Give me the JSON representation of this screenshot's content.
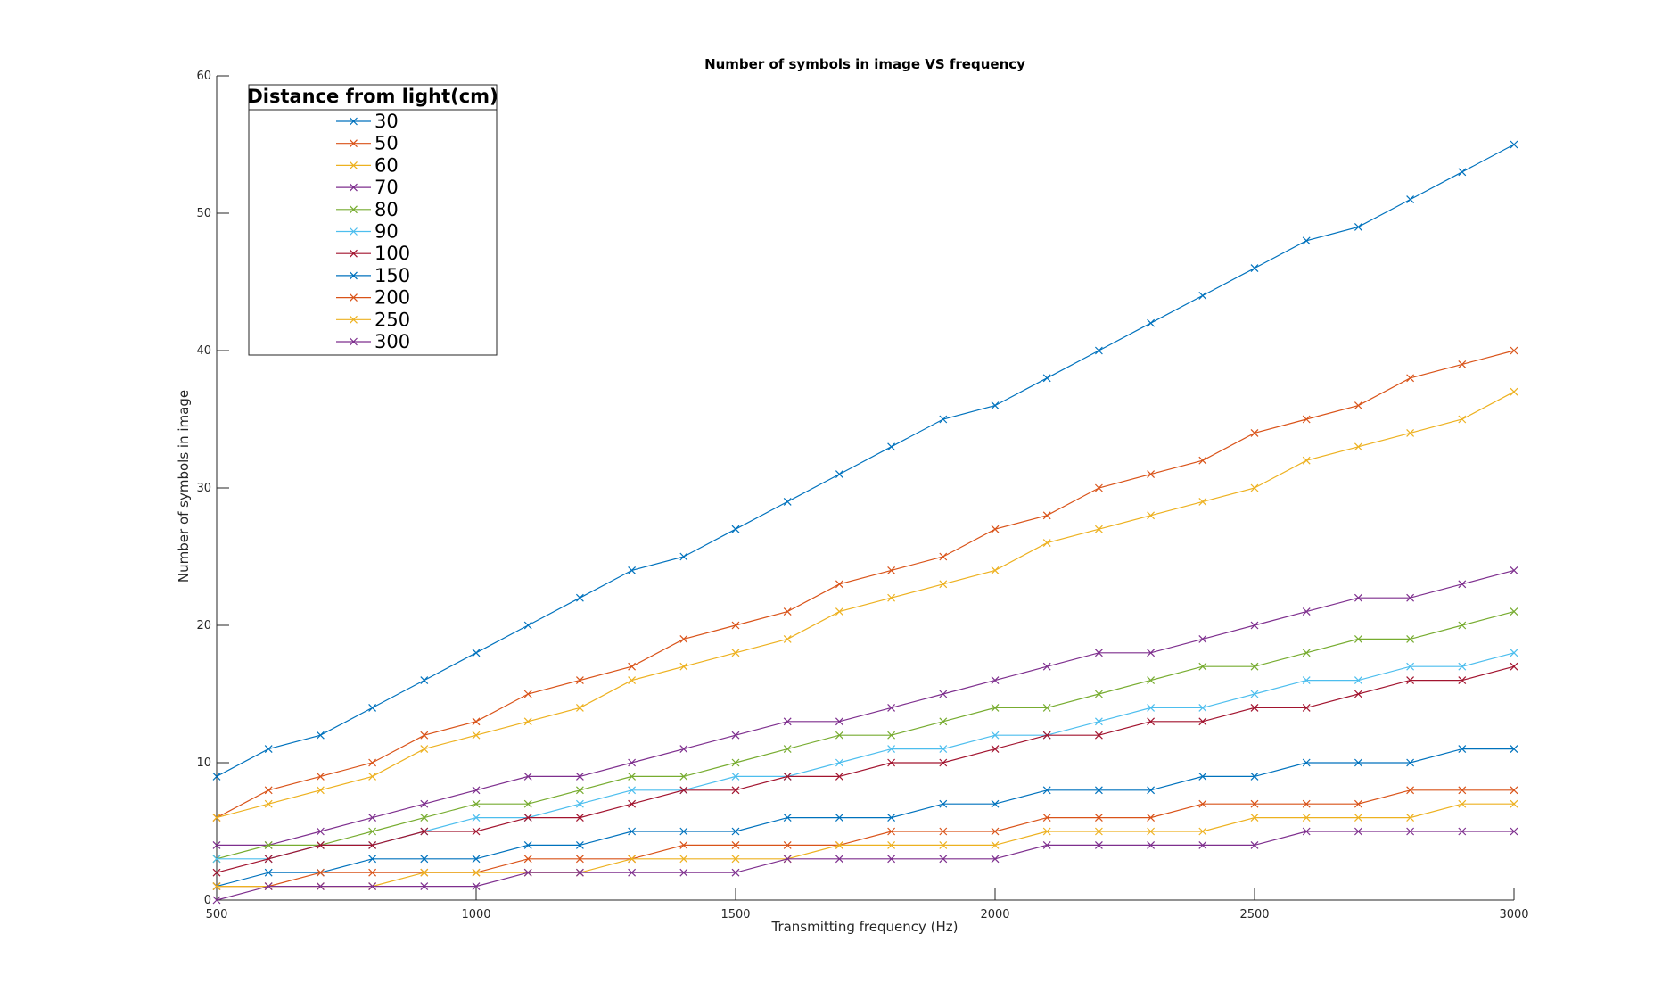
{
  "chart_data": {
    "type": "line",
    "title": "Number of symbols in image VS frequency",
    "xlabel": "Transmitting frequency (Hz)",
    "ylabel": "Number of symbols in image",
    "xlim": [
      500,
      3000
    ],
    "ylim": [
      0,
      60
    ],
    "xticks": [
      500,
      1000,
      1500,
      2000,
      2500,
      3000
    ],
    "yticks": [
      0,
      10,
      20,
      30,
      40,
      50,
      60
    ],
    "grid": false,
    "marker": "x",
    "legend": {
      "title": "Distance from light(cm)",
      "placement": "top-left"
    },
    "x": [
      500,
      600,
      700,
      800,
      900,
      1000,
      1100,
      1200,
      1300,
      1400,
      1500,
      1600,
      1700,
      1800,
      1900,
      2000,
      2100,
      2200,
      2300,
      2400,
      2500,
      2600,
      2700,
      2800,
      2900,
      3000
    ],
    "series": [
      {
        "name": "30",
        "color": "#0072BD",
        "values": [
          9,
          11,
          12,
          14,
          16,
          18,
          20,
          22,
          24,
          25,
          27,
          29,
          31,
          33,
          35,
          36,
          38,
          40,
          42,
          44,
          46,
          48,
          49,
          51,
          53,
          55
        ]
      },
      {
        "name": "50",
        "color": "#D95319",
        "values": [
          6,
          8,
          9,
          10,
          12,
          13,
          15,
          16,
          17,
          19,
          20,
          21,
          23,
          24,
          25,
          27,
          28,
          30,
          31,
          32,
          34,
          35,
          36,
          38,
          39,
          40
        ]
      },
      {
        "name": "60",
        "color": "#EDB120",
        "values": [
          6,
          7,
          8,
          9,
          11,
          12,
          13,
          14,
          16,
          17,
          18,
          19,
          21,
          22,
          23,
          24,
          26,
          27,
          28,
          29,
          30,
          32,
          33,
          34,
          35,
          37
        ]
      },
      {
        "name": "70",
        "color": "#7E2F8E",
        "values": [
          4,
          4,
          5,
          6,
          7,
          8,
          9,
          9,
          10,
          11,
          12,
          13,
          13,
          14,
          15,
          16,
          17,
          18,
          18,
          19,
          20,
          21,
          22,
          22,
          23,
          24
        ]
      },
      {
        "name": "80",
        "color": "#77AC30",
        "values": [
          3,
          4,
          4,
          5,
          6,
          7,
          7,
          8,
          9,
          9,
          10,
          11,
          12,
          12,
          13,
          14,
          14,
          15,
          16,
          17,
          17,
          18,
          19,
          19,
          20,
          21
        ]
      },
      {
        "name": "90",
        "color": "#4DBEEE",
        "values": [
          3,
          3,
          4,
          4,
          5,
          6,
          6,
          7,
          8,
          8,
          9,
          9,
          10,
          11,
          11,
          12,
          12,
          13,
          14,
          14,
          15,
          16,
          16,
          17,
          17,
          18
        ]
      },
      {
        "name": "100",
        "color": "#A2142F",
        "values": [
          2,
          3,
          4,
          4,
          5,
          5,
          6,
          6,
          7,
          8,
          8,
          9,
          9,
          10,
          10,
          11,
          12,
          12,
          13,
          13,
          14,
          14,
          15,
          16,
          16,
          17
        ]
      },
      {
        "name": "150",
        "color": "#0072BD",
        "values": [
          1,
          2,
          2,
          3,
          3,
          3,
          4,
          4,
          5,
          5,
          5,
          6,
          6,
          6,
          7,
          7,
          8,
          8,
          8,
          9,
          9,
          10,
          10,
          10,
          11,
          11
        ]
      },
      {
        "name": "200",
        "color": "#D95319",
        "values": [
          1,
          1,
          2,
          2,
          2,
          2,
          3,
          3,
          3,
          4,
          4,
          4,
          4,
          5,
          5,
          5,
          6,
          6,
          6,
          7,
          7,
          7,
          7,
          8,
          8,
          8
        ]
      },
      {
        "name": "250",
        "color": "#EDB120",
        "values": [
          1,
          1,
          1,
          1,
          2,
          2,
          2,
          2,
          3,
          3,
          3,
          3,
          4,
          4,
          4,
          4,
          5,
          5,
          5,
          5,
          6,
          6,
          6,
          6,
          7,
          7
        ]
      },
      {
        "name": "300",
        "color": "#7E2F8E",
        "values": [
          0,
          1,
          1,
          1,
          1,
          1,
          2,
          2,
          2,
          2,
          2,
          3,
          3,
          3,
          3,
          3,
          4,
          4,
          4,
          4,
          4,
          5,
          5,
          5,
          5,
          5
        ]
      }
    ]
  }
}
